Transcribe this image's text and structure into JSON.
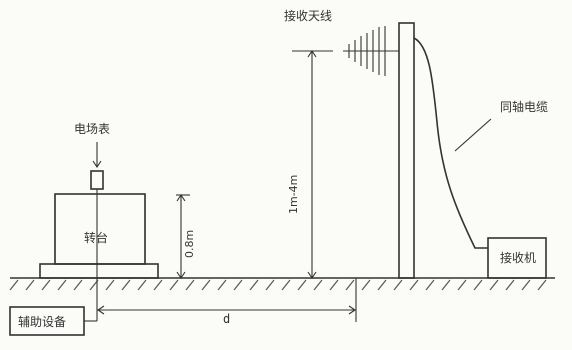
{
  "diagram": {
    "labels": {
      "receiving_antenna": "接收天线",
      "coax_cable": "同轴电缆",
      "field_meter": "电场表",
      "turntable": "转台",
      "height_table": "0.8m",
      "antenna_height": "1m-4m",
      "receiver": "接收机",
      "aux_equipment": "辅助设备",
      "distance": "d"
    },
    "colors": {
      "line": "#333333",
      "background": "#fbfbf8"
    }
  }
}
